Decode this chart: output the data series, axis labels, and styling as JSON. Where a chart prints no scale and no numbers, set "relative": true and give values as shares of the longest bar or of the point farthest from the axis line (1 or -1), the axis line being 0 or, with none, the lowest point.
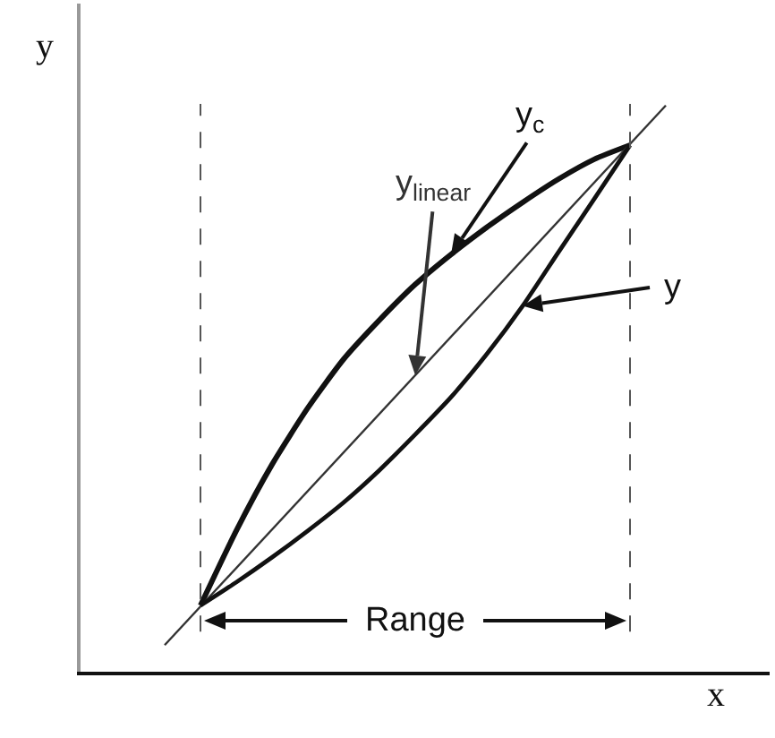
{
  "chart_data": {
    "type": "line",
    "relative": true,
    "xlabel": "x",
    "ylabel": "y",
    "marker": "none",
    "line_style": "solid",
    "categories": [
      null,
      null,
      null,
      null,
      null,
      null,
      null,
      null,
      null,
      null,
      null,
      null,
      null,
      null,
      null
    ],
    "series": [
      {
        "name": "y$_{c}$",
        "color": "#111111",
        "values": [
          null,
          0.117,
          0.249,
          0.366,
          0.466,
          0.552,
          0.621,
          0.684,
          0.737,
          0.785,
          0.829,
          0.87,
          0.905,
          0.93,
          null
        ]
      },
      {
        "name": "y$_{linear}$",
        "color": "#333333",
        "values": [
          0.047,
          null,
          null,
          null,
          null,
          null,
          null,
          null,
          null,
          null,
          null,
          null,
          null,
          null,
          1
        ]
      },
      {
        "name": "y",
        "color": "#111111",
        "values": [
          null,
          0.117,
          0.158,
          0.202,
          0.249,
          0.299,
          0.356,
          0.419,
          0.485,
          0.561,
          0.646,
          0.741,
          0.835,
          0.93,
          null
        ]
      }
    ],
    "annotations": [
      "Range"
    ]
  }
}
